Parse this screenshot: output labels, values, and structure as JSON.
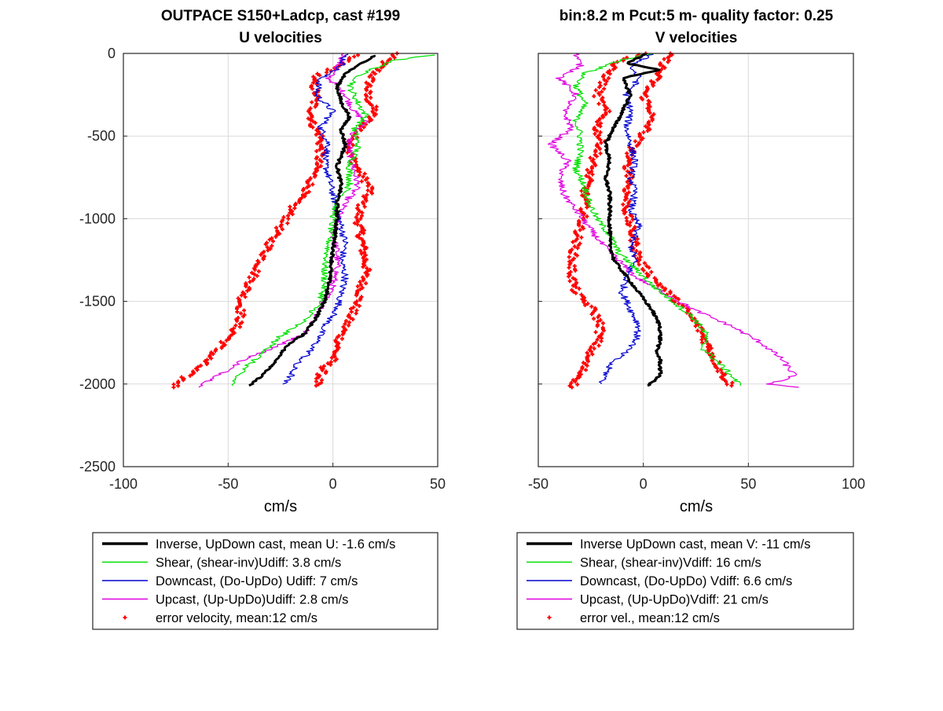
{
  "colors": {
    "inverse": "#000000",
    "shear": "#00e000",
    "downcast": "#0000d0",
    "upcast": "#e000e0",
    "error": "#ff0000",
    "grid": "#d9d9d9",
    "axis": "#262626"
  },
  "chart_data": [
    {
      "type": "line",
      "title": "OUTPACE S150+Ladcp, cast #199",
      "subtitle": "U velocities",
      "xlabel": "cm/s",
      "ylabel": "",
      "xlim": [
        -100,
        50
      ],
      "ylim": [
        -2500,
        0
      ],
      "xticks": [
        "-100",
        "-50",
        "0",
        "50"
      ],
      "yticks": [
        "0",
        "-500",
        "-1000",
        "-1500",
        "-2000",
        "-2500"
      ],
      "grid": true,
      "legend_position": "below",
      "legend": [
        {
          "label": "Inverse, UpDown cast, mean U:  -1.6 cm/s",
          "style": "thick-line",
          "color": "inverse"
        },
        {
          "label": "Shear, (shear-inv)Udiff:  3.8 cm/s",
          "style": "line",
          "color": "shear"
        },
        {
          "label": "Downcast, (Do-UpDo) Udiff:  7 cm/s",
          "style": "line",
          "color": "downcast"
        },
        {
          "label": "Upcast, (Up-UpDo)Udiff:  2.8 cm/s",
          "style": "line",
          "color": "upcast"
        },
        {
          "label": "error velocity, mean:12 cm/s",
          "style": "dots",
          "color": "error"
        }
      ],
      "series": [
        {
          "key": "inverse",
          "x": [
            20,
            14,
            6,
            2,
            4,
            8,
            4,
            6,
            2,
            4,
            2,
            2,
            1,
            0,
            -1,
            -2,
            -4,
            -8,
            -14,
            -20,
            -24,
            -28,
            -34,
            -40
          ],
          "y": [
            -10,
            -60,
            -120,
            -200,
            -300,
            -380,
            -460,
            -560,
            -680,
            -800,
            -900,
            -1000,
            -1100,
            -1200,
            -1300,
            -1400,
            -1500,
            -1600,
            -1700,
            -1750,
            -1800,
            -1880,
            -1950,
            -2010
          ]
        },
        {
          "key": "shear",
          "x": [
            48,
            30,
            14,
            8,
            12,
            16,
            10,
            12,
            8,
            8,
            2,
            0,
            -2,
            -4,
            -4,
            -6,
            -12,
            -18,
            -26,
            -32,
            -40,
            -46,
            -48
          ],
          "y": [
            -10,
            -40,
            -120,
            -200,
            -300,
            -380,
            -460,
            -560,
            -680,
            -800,
            -900,
            -1000,
            -1150,
            -1300,
            -1400,
            -1500,
            -1600,
            -1650,
            -1720,
            -1800,
            -1880,
            -1950,
            -2010
          ]
        },
        {
          "key": "downcast",
          "x": [
            6,
            4,
            -6,
            -8,
            0,
            -6,
            -2,
            -4,
            -2,
            0,
            2,
            4,
            6,
            4,
            6,
            4,
            2,
            -4,
            -8,
            -12,
            -18,
            -20,
            -24
          ],
          "y": [
            0,
            -80,
            -150,
            -250,
            -350,
            -450,
            -550,
            -650,
            -750,
            -850,
            -950,
            -1050,
            -1150,
            -1250,
            -1350,
            -1450,
            -1550,
            -1650,
            -1750,
            -1820,
            -1880,
            -1950,
            -2000
          ]
        },
        {
          "key": "upcast",
          "x": [
            6,
            2,
            -2,
            6,
            10,
            16,
            8,
            8,
            10,
            12,
            6,
            2,
            0,
            2,
            2,
            0,
            -4,
            -8,
            -14,
            -28,
            -42,
            -52,
            -64
          ],
          "y": [
            0,
            -80,
            -150,
            -250,
            -350,
            -420,
            -500,
            -600,
            -700,
            -800,
            -900,
            -1000,
            -1100,
            -1200,
            -1300,
            -1400,
            -1500,
            -1600,
            -1700,
            -1780,
            -1850,
            -1930,
            -2020
          ]
        },
        {
          "key": "error_hi",
          "x": [
            30,
            24,
            18,
            16,
            20,
            16,
            10,
            8,
            12,
            18,
            14,
            12,
            14,
            16,
            14,
            12,
            8,
            4,
            2,
            0,
            -4,
            -6,
            -8
          ],
          "y": [
            0,
            -60,
            -150,
            -250,
            -350,
            -420,
            -500,
            -600,
            -700,
            -820,
            -900,
            -1000,
            -1150,
            -1300,
            -1400,
            -1500,
            -1600,
            -1700,
            -1780,
            -1850,
            -1900,
            -1950,
            -2010
          ]
        },
        {
          "key": "error_lo",
          "x": [
            10,
            2,
            -10,
            -8,
            -10,
            -10,
            -6,
            -6,
            -8,
            -12,
            -18,
            -22,
            -28,
            -32,
            -36,
            -40,
            -44,
            -44,
            -48,
            -56,
            -62,
            -70,
            -76
          ],
          "y": [
            -10,
            -80,
            -150,
            -250,
            -350,
            -420,
            -500,
            -600,
            -700,
            -820,
            -900,
            -1000,
            -1100,
            -1200,
            -1300,
            -1400,
            -1500,
            -1600,
            -1700,
            -1800,
            -1880,
            -1950,
            -2020
          ]
        }
      ]
    },
    {
      "type": "line",
      "title": "bin:8.2 m  Pcut:5 m- quality factor:  0.25",
      "subtitle": "V velocities",
      "xlabel": "cm/s",
      "ylabel": "",
      "xlim": [
        -50,
        100
      ],
      "ylim": [
        -2500,
        0
      ],
      "xticks": [
        "-50",
        "0",
        "50",
        "100"
      ],
      "yticks": [],
      "grid": true,
      "legend_position": "below",
      "legend": [
        {
          "label": "Inverse UpDown cast, mean V:  -11 cm/s",
          "style": "thick-line",
          "color": "inverse"
        },
        {
          "label": "Shear, (shear-inv)Vdiff:  16 cm/s",
          "style": "line",
          "color": "shear"
        },
        {
          "label": "Downcast, (Do-UpDo) Vdiff:  6.6 cm/s",
          "style": "line",
          "color": "downcast"
        },
        {
          "label": "Upcast, (Up-UpDo)Vdiff:  21 cm/s",
          "style": "line",
          "color": "upcast"
        },
        {
          "label": "error vel., mean:12 cm/s",
          "style": "dots",
          "color": "error"
        }
      ],
      "series": [
        {
          "key": "inverse",
          "x": [
            2,
            -8,
            8,
            -10,
            -6,
            -10,
            -14,
            -18,
            -16,
            -18,
            -16,
            -16,
            -16,
            -16,
            -14,
            -8,
            -2,
            4,
            8,
            8,
            6,
            8,
            8,
            2
          ],
          "y": [
            0,
            -60,
            -100,
            -150,
            -250,
            -350,
            -450,
            -550,
            -650,
            -750,
            -850,
            -950,
            -1050,
            -1150,
            -1250,
            -1350,
            -1450,
            -1550,
            -1650,
            -1750,
            -1800,
            -1850,
            -1950,
            -2010
          ]
        },
        {
          "key": "shear",
          "x": [
            4,
            -10,
            -28,
            -32,
            -28,
            -32,
            -30,
            -30,
            -32,
            -28,
            -26,
            -22,
            -16,
            -12,
            -4,
            4,
            14,
            24,
            30,
            28,
            34,
            42,
            46
          ],
          "y": [
            0,
            -40,
            -120,
            -200,
            -300,
            -400,
            -500,
            -600,
            -700,
            -800,
            -900,
            -1000,
            -1100,
            -1200,
            -1300,
            -1400,
            -1500,
            -1600,
            -1700,
            -1780,
            -1850,
            -1950,
            -2010
          ]
        },
        {
          "key": "downcast",
          "x": [
            4,
            -6,
            -2,
            -8,
            -6,
            -8,
            -6,
            -4,
            -6,
            -4,
            -6,
            -2,
            -6,
            -4,
            -8,
            -10,
            -6,
            -2,
            -4,
            -10,
            -16,
            -18,
            -20
          ],
          "y": [
            0,
            -80,
            -150,
            -250,
            -350,
            -450,
            -550,
            -650,
            -750,
            -850,
            -950,
            -1050,
            -1150,
            -1250,
            -1350,
            -1450,
            -1550,
            -1650,
            -1750,
            -1820,
            -1880,
            -1950,
            -2000
          ]
        },
        {
          "key": "upcast",
          "x": [
            -32,
            -30,
            -40,
            -32,
            -38,
            -34,
            -44,
            -36,
            -40,
            -38,
            -32,
            -26,
            -20,
            -12,
            -4,
            10,
            24,
            42,
            56,
            66,
            72,
            60,
            74
          ],
          "y": [
            0,
            -80,
            -150,
            -250,
            -350,
            -450,
            -550,
            -650,
            -750,
            -850,
            -950,
            -1050,
            -1150,
            -1250,
            -1350,
            -1450,
            -1550,
            -1650,
            -1750,
            -1850,
            -1950,
            -2000,
            -2020
          ]
        },
        {
          "key": "error_hi",
          "x": [
            12,
            10,
            6,
            0,
            4,
            2,
            -4,
            -8,
            -6,
            -8,
            -8,
            -6,
            -4,
            -2,
            4,
            12,
            20,
            26,
            30,
            32,
            34,
            38,
            42
          ],
          "y": [
            0,
            -60,
            -150,
            -250,
            -350,
            -450,
            -550,
            -650,
            -750,
            -850,
            -950,
            -1050,
            -1150,
            -1250,
            -1350,
            -1450,
            -1550,
            -1650,
            -1750,
            -1800,
            -1850,
            -1950,
            -2010
          ]
        },
        {
          "key": "error_lo",
          "x": [
            0,
            -14,
            -18,
            -22,
            -18,
            -22,
            -20,
            -24,
            -26,
            -28,
            -28,
            -30,
            -32,
            -34,
            -34,
            -32,
            -24,
            -20,
            -22,
            -26,
            -28,
            -30,
            -34
          ],
          "y": [
            0,
            -60,
            -150,
            -250,
            -350,
            -450,
            -550,
            -650,
            -750,
            -850,
            -950,
            -1050,
            -1150,
            -1250,
            -1350,
            -1450,
            -1550,
            -1650,
            -1750,
            -1820,
            -1880,
            -1950,
            -2020
          ]
        }
      ]
    }
  ]
}
